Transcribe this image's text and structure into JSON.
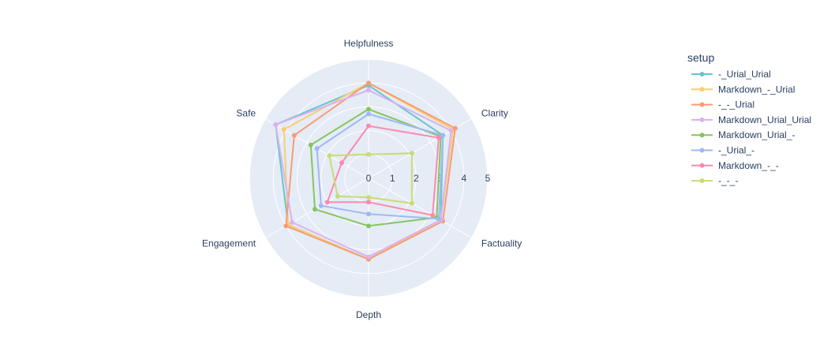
{
  "chart_data": {
    "type": "radar",
    "axes": [
      "Helpfulness",
      "Clarity",
      "Factuality",
      "Depth",
      "Engagement",
      "Safe"
    ],
    "radial_range": [
      0,
      5
    ],
    "radial_ticks": [
      "0",
      "1",
      "2",
      "3",
      "4",
      "5"
    ],
    "grid": true,
    "legend_title": "setup",
    "legend_position": "right",
    "series": [
      {
        "name": "-_Urial_Urial",
        "color": "#66c5cc",
        "values": [
          3.9,
          3.6,
          3.5,
          3.4,
          3.9,
          4.5
        ]
      },
      {
        "name": "Markdown_-_Urial",
        "color": "#f6cf71",
        "values": [
          4.0,
          4.1,
          3.5,
          3.4,
          3.9,
          4.1
        ]
      },
      {
        "name": "-_-_Urial",
        "color": "#f89c74",
        "values": [
          4.0,
          4.2,
          3.6,
          3.4,
          4.0,
          3.6
        ]
      },
      {
        "name": "Markdown_Urial_Urial",
        "color": "#dcb0f2",
        "values": [
          3.7,
          4.0,
          3.5,
          3.3,
          3.7,
          4.5
        ]
      },
      {
        "name": "Markdown_Urial_-",
        "color": "#87c55f",
        "values": [
          2.9,
          3.5,
          3.3,
          2.0,
          2.6,
          2.8
        ]
      },
      {
        "name": "-_Urial_-",
        "color": "#9eb9f3",
        "values": [
          2.7,
          3.6,
          3.4,
          1.5,
          2.3,
          2.5
        ]
      },
      {
        "name": "Markdown_-_-",
        "color": "#fe88b1",
        "values": [
          2.2,
          3.4,
          3.1,
          1.0,
          2.0,
          1.3
        ]
      },
      {
        "name": "-_-_-",
        "color": "#c9db74",
        "values": [
          1.0,
          2.1,
          2.1,
          0.8,
          1.5,
          1.9
        ]
      }
    ]
  }
}
